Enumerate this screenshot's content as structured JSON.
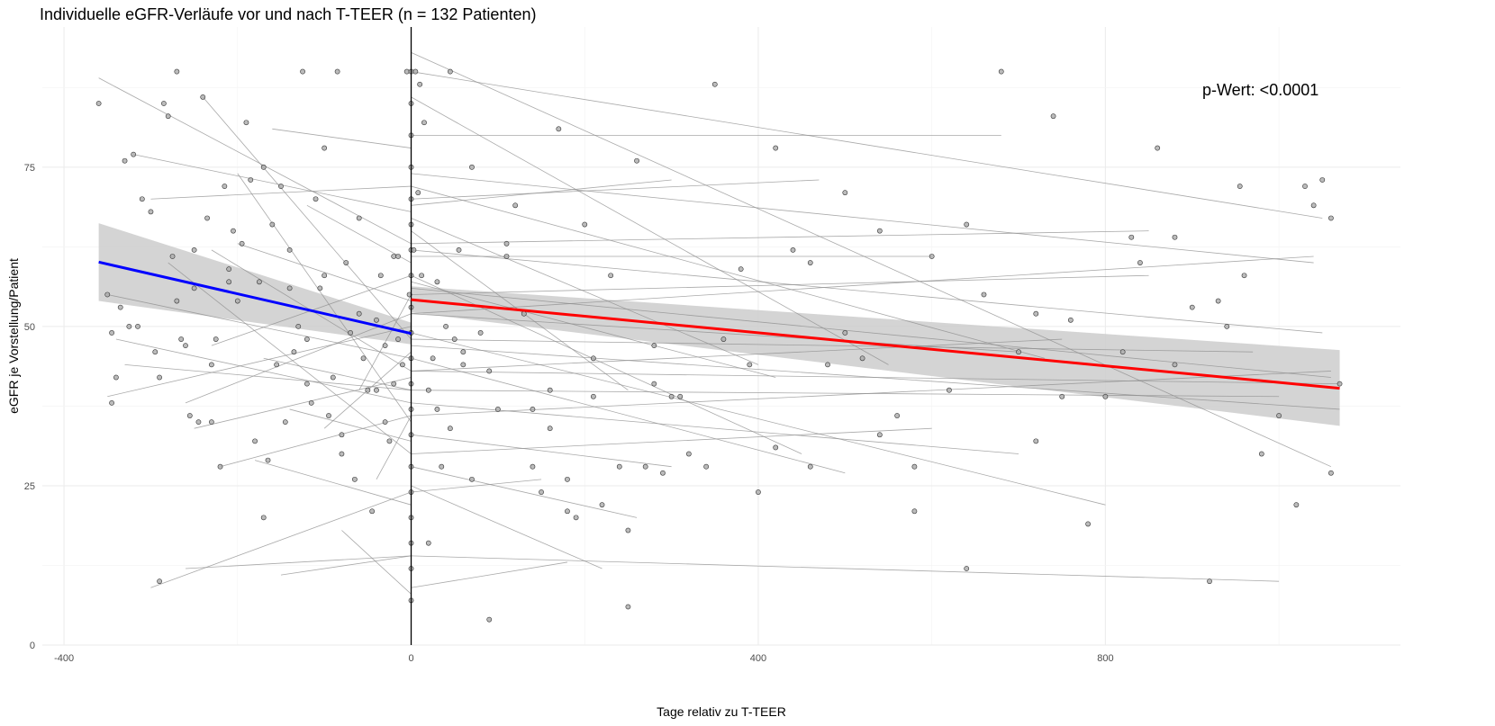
{
  "chart_data": {
    "type": "scatter",
    "title": "Individuelle eGFR-Verläufe vor und nach T-TEER (n = 132 Patienten)",
    "xlabel": "Tage relativ zu T-TEER",
    "ylabel": "eGFR je Vorstellung/Patient",
    "annotation": "p-Wert: <0.0001",
    "xlim": [
      -425,
      1140
    ],
    "ylim": [
      0,
      97
    ],
    "x_ticks": [
      -400,
      0,
      400,
      800
    ],
    "x_tick_labels": [
      "-400",
      "0",
      "400",
      "800"
    ],
    "y_ticks": [
      0,
      25,
      50,
      75
    ],
    "y_tick_labels": [
      "0",
      "25",
      "50",
      "75"
    ],
    "grid": true,
    "vline_x": 0,
    "colors": {
      "before": "#0000ff",
      "after": "#ff0000",
      "band": "#cccccc",
      "points": "#aaaaaa",
      "lines": "#8c8c8c"
    },
    "regression": [
      {
        "name": "before",
        "x": [
          -360,
          0
        ],
        "y": [
          60.1,
          48.9
        ],
        "ci_lower": [
          54.0,
          47.2
        ],
        "ci_upper": [
          66.2,
          50.6
        ]
      },
      {
        "name": "after",
        "x": [
          0,
          1070
        ],
        "y": [
          54.2,
          40.3
        ],
        "ci_lower": [
          52.2,
          34.4
        ],
        "ci_upper": [
          56.3,
          46.3
        ]
      }
    ],
    "patient_lines": [
      [
        -360,
        89,
        0,
        63
      ],
      [
        -350,
        55,
        0,
        45
      ],
      [
        -340,
        48,
        0,
        38
      ],
      [
        -330,
        44,
        0,
        40
      ],
      [
        -320,
        77,
        0,
        68
      ],
      [
        -300,
        70,
        0,
        72
      ],
      [
        -280,
        60,
        0,
        30
      ],
      [
        -260,
        38,
        0,
        52
      ],
      [
        -250,
        34,
        0,
        42
      ],
      [
        -240,
        86,
        0,
        48
      ],
      [
        -230,
        47,
        0,
        58
      ],
      [
        -220,
        28,
        0,
        36
      ],
      [
        -200,
        63,
        0,
        54
      ],
      [
        -180,
        29,
        0,
        22
      ],
      [
        -160,
        81,
        0,
        78
      ],
      [
        -150,
        11,
        0,
        14
      ],
      [
        -140,
        37,
        0,
        32
      ],
      [
        -120,
        69,
        0,
        60
      ],
      [
        -100,
        34,
        0,
        46
      ],
      [
        -80,
        18,
        0,
        8
      ],
      [
        -60,
        40,
        0,
        55
      ],
      [
        -40,
        26,
        0,
        36
      ],
      [
        -300,
        9,
        0,
        24
      ],
      [
        -260,
        12,
        0,
        14
      ],
      [
        -200,
        74,
        0,
        35
      ],
      [
        -350,
        39,
        0,
        50
      ],
      [
        -230,
        62,
        0,
        43
      ],
      [
        -170,
        45,
        0,
        40
      ],
      [
        0,
        90,
        1050,
        67
      ],
      [
        0,
        80,
        680,
        80
      ],
      [
        0,
        74,
        1040,
        60
      ],
      [
        0,
        62,
        1050,
        49
      ],
      [
        0,
        47,
        1070,
        37
      ],
      [
        0,
        56,
        1060,
        42
      ],
      [
        0,
        43,
        1070,
        41
      ],
      [
        0,
        30,
        600,
        34
      ],
      [
        0,
        14,
        1000,
        10
      ],
      [
        0,
        69,
        300,
        73
      ],
      [
        0,
        61,
        600,
        61
      ],
      [
        0,
        93,
        1060,
        28
      ],
      [
        0,
        52,
        700,
        46
      ],
      [
        0,
        48,
        970,
        46
      ],
      [
        0,
        38,
        700,
        30
      ],
      [
        0,
        65,
        250,
        40
      ],
      [
        0,
        58,
        450,
        30
      ],
      [
        0,
        45,
        500,
        27
      ],
      [
        0,
        70,
        470,
        73
      ],
      [
        0,
        36,
        1060,
        43
      ],
      [
        0,
        25,
        220,
        12
      ],
      [
        0,
        72,
        730,
        45
      ],
      [
        0,
        33,
        300,
        28
      ],
      [
        0,
        55,
        850,
        58
      ],
      [
        0,
        40,
        1000,
        39
      ],
      [
        0,
        57,
        420,
        42
      ],
      [
        0,
        86,
        550,
        44
      ],
      [
        0,
        24,
        150,
        26
      ],
      [
        0,
        63,
        850,
        65
      ],
      [
        0,
        52,
        1040,
        61
      ],
      [
        0,
        28,
        260,
        20
      ],
      [
        0,
        43,
        750,
        48
      ],
      [
        0,
        67,
        400,
        44
      ],
      [
        0,
        9,
        180,
        13
      ],
      [
        0,
        49,
        800,
        22
      ]
    ],
    "points_x": [
      -360,
      -350,
      -345,
      -340,
      -335,
      -330,
      -325,
      -320,
      -310,
      -300,
      -295,
      -290,
      -285,
      -280,
      -275,
      -270,
      -265,
      -260,
      -255,
      -250,
      -245,
      -240,
      -235,
      -230,
      -225,
      -220,
      -215,
      -210,
      -205,
      -200,
      -195,
      -190,
      -185,
      -180,
      -175,
      -170,
      -165,
      -160,
      -155,
      -150,
      -145,
      -140,
      -135,
      -130,
      -125,
      -120,
      -115,
      -110,
      -105,
      -100,
      -95,
      -90,
      -85,
      -80,
      -75,
      -70,
      -65,
      -60,
      -55,
      -50,
      -45,
      -40,
      -35,
      -30,
      -25,
      -20,
      -15,
      -10,
      -5,
      -2,
      0,
      0,
      0,
      0,
      0,
      0,
      0,
      0,
      0,
      0,
      0,
      0,
      0,
      0,
      0,
      0,
      0,
      0,
      0,
      0,
      3,
      5,
      8,
      10,
      12,
      15,
      20,
      25,
      30,
      35,
      40,
      45,
      50,
      55,
      60,
      70,
      80,
      90,
      100,
      110,
      120,
      130,
      140,
      150,
      160,
      170,
      180,
      190,
      200,
      210,
      220,
      230,
      240,
      250,
      260,
      270,
      280,
      290,
      300,
      320,
      340,
      360,
      380,
      400,
      420,
      440,
      460,
      480,
      500,
      520,
      540,
      560,
      580,
      600,
      620,
      640,
      660,
      680,
      700,
      720,
      740,
      760,
      780,
      800,
      820,
      840,
      860,
      880,
      900,
      920,
      940,
      960,
      980,
      1000,
      1020,
      1040,
      1050,
      1060,
      1070,
      -170,
      -230,
      -100,
      -60,
      -20,
      20,
      60,
      -270,
      -120,
      140,
      250,
      350,
      500,
      750,
      830,
      955,
      -290,
      -210,
      -80,
      -30,
      30,
      90,
      180,
      310,
      460,
      640,
      -345,
      -250,
      -40,
      45,
      110,
      210,
      420,
      580,
      930,
      1060,
      -315,
      -140,
      -15,
      70,
      160,
      280,
      390,
      540,
      720,
      880,
      1030
    ],
    "points_y": [
      85,
      55,
      38,
      42,
      53,
      76,
      50,
      77,
      70,
      68,
      46,
      42,
      85,
      83,
      61,
      90,
      48,
      47,
      36,
      62,
      35,
      86,
      67,
      44,
      48,
      28,
      72,
      57,
      65,
      54,
      63,
      82,
      73,
      32,
      57,
      75,
      29,
      66,
      44,
      72,
      35,
      62,
      46,
      50,
      90,
      41,
      38,
      70,
      56,
      78,
      36,
      42,
      90,
      30,
      60,
      49,
      26,
      67,
      45,
      40,
      21,
      51,
      58,
      35,
      32,
      61,
      48,
      44,
      90,
      55,
      7,
      12,
      16,
      20,
      24,
      28,
      33,
      37,
      41,
      45,
      49,
      53,
      58,
      62,
      66,
      70,
      75,
      80,
      85,
      90,
      62,
      90,
      71,
      88,
      58,
      82,
      40,
      45,
      37,
      28,
      50,
      34,
      48,
      62,
      44,
      75,
      49,
      4,
      37,
      61,
      69,
      52,
      28,
      24,
      40,
      81,
      21,
      20,
      66,
      45,
      22,
      58,
      28,
      6,
      76,
      28,
      41,
      27,
      39,
      30,
      28,
      48,
      59,
      24,
      78,
      62,
      28,
      44,
      71,
      45,
      33,
      36,
      21,
      61,
      40,
      12,
      55,
      90,
      46,
      32,
      83,
      51,
      19,
      39,
      46,
      60,
      78,
      64,
      53,
      10,
      50,
      58,
      30,
      36,
      22,
      69,
      73,
      67,
      41,
      20,
      35,
      58,
      52,
      41,
      16,
      46,
      54,
      48,
      37,
      18,
      88,
      49,
      39,
      64,
      72,
      10,
      59,
      33,
      47,
      57,
      43,
      26,
      39,
      60,
      66,
      49,
      56,
      40,
      90,
      63,
      39,
      31,
      28,
      54,
      27,
      50,
      56,
      61,
      26,
      34,
      47,
      44,
      65,
      52,
      44,
      72,
      66,
      29,
      53,
      35,
      22,
      60
    ]
  }
}
